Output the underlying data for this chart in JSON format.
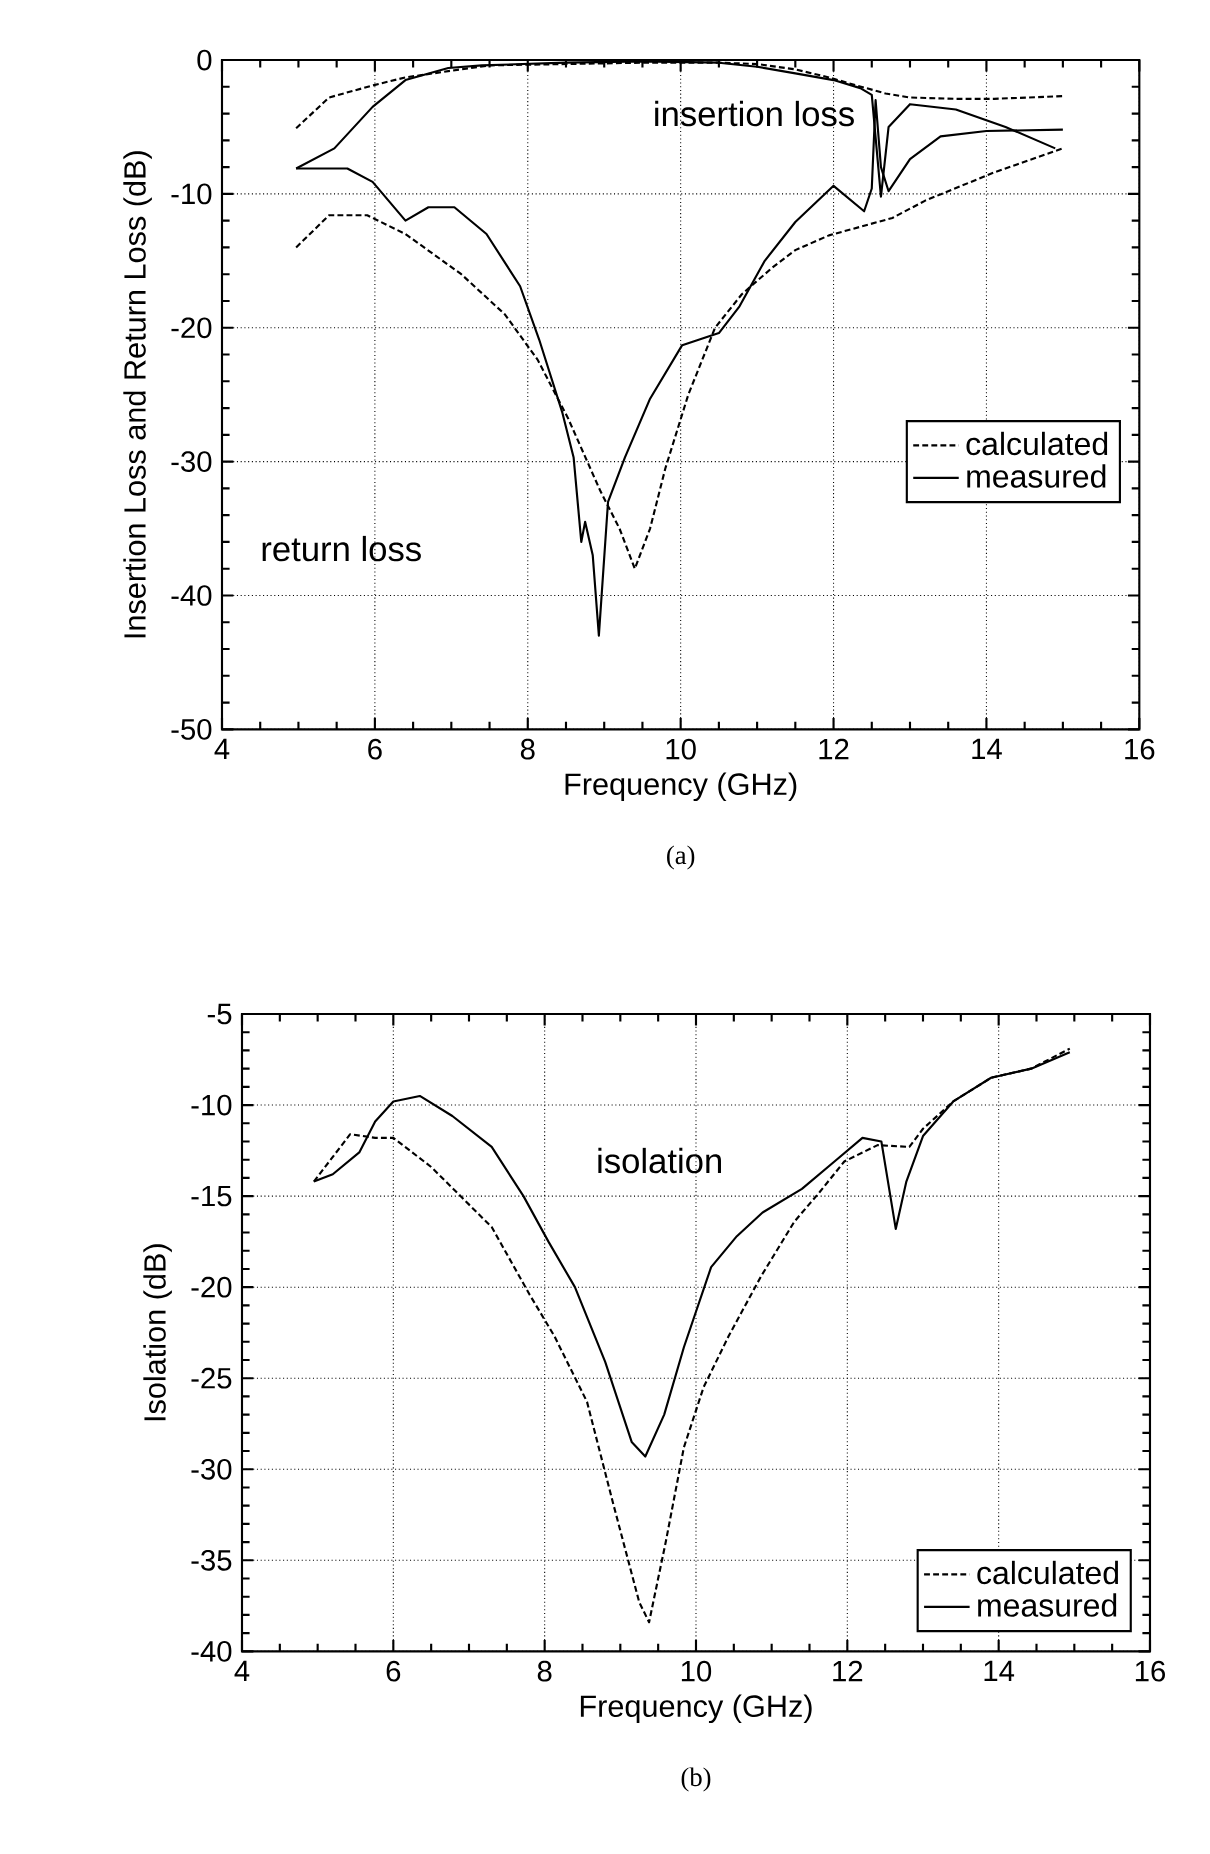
{
  "chart_data": [
    {
      "type": "line",
      "xlabel": "Frequency (GHz)",
      "ylabel": "Insertion Loss and Return Loss (dB)",
      "xlim": [
        4,
        16
      ],
      "xticks": [
        4,
        6,
        8,
        10,
        12,
        14,
        16
      ],
      "ylim": [
        -50,
        0
      ],
      "yticks": [
        -50,
        -40,
        -30,
        -20,
        -10,
        0
      ],
      "grid": true,
      "legend": "right",
      "series": [
        {
          "name": "calculated",
          "color": "#000000",
          "line_style": "dashed",
          "x": [
            4.97,
            5.4,
            5.97,
            6.4,
            7.0,
            7.5,
            8.5,
            9.5,
            10.5,
            11.0,
            11.5,
            11.94,
            12.3,
            12.68,
            13.0,
            13.6,
            14.1,
            15.0
          ],
          "values": [
            -5.1,
            -2.8,
            -1.9,
            -1.3,
            -0.8,
            -0.4,
            -0.3,
            -0.2,
            -0.2,
            -0.3,
            -0.7,
            -1.3,
            -1.9,
            -2.5,
            -2.8,
            -2.9,
            -2.9,
            -2.7
          ]
        },
        {
          "name": "measured",
          "color": "#000000",
          "line_style": "solid",
          "x": [
            4.97,
            5.47,
            5.97,
            6.4,
            6.96,
            7.4,
            8.5,
            9.5,
            10.5,
            11.0,
            11.5,
            12.0,
            12.35,
            12.5,
            12.62,
            12.72,
            13.0,
            13.6,
            14.25,
            14.9
          ],
          "values": [
            -8.1,
            -6.6,
            -3.5,
            -1.5,
            -0.6,
            -0.4,
            -0.2,
            -0.1,
            -0.2,
            -0.5,
            -1.0,
            -1.5,
            -2.1,
            -2.6,
            -10.2,
            -5.0,
            -3.3,
            -3.7,
            -5.0,
            -6.6
          ]
        },
        {
          "color": "#000000",
          "line_style": "dashed",
          "x": [
            4.97,
            5.4,
            5.9,
            6.4,
            7.13,
            7.7,
            8.13,
            8.53,
            8.95,
            9.2,
            9.4,
            9.6,
            9.8,
            10.1,
            10.45,
            10.8,
            11.2,
            11.5,
            11.94,
            12.77,
            13.2,
            14.1,
            15.0
          ],
          "values": [
            -14.0,
            -11.6,
            -11.6,
            -13.0,
            -16.0,
            -19.0,
            -22.4,
            -26.8,
            -32.2,
            -35.0,
            -38.0,
            -35.0,
            -30.5,
            -25.0,
            -20.0,
            -17.5,
            -15.5,
            -14.2,
            -13.1,
            -11.8,
            -10.5,
            -8.4,
            -6.6
          ]
        },
        {
          "color": "#000000",
          "line_style": "solid",
          "x": [
            4.97,
            5.64,
            5.97,
            6.4,
            6.7,
            7.04,
            7.46,
            7.9,
            8.15,
            8.45,
            8.6,
            8.7,
            8.75,
            8.85,
            8.93,
            9.05,
            9.27,
            9.6,
            10.02,
            10.5,
            10.77,
            11.1,
            11.5,
            12.0,
            12.4,
            12.5,
            12.55,
            12.62,
            12.72,
            13.0,
            13.4,
            14.0,
            15.0
          ],
          "values": [
            -8.1,
            -8.1,
            -9.1,
            -12.0,
            -11.0,
            -11.0,
            -13.0,
            -16.9,
            -20.9,
            -26.3,
            -29.7,
            -36.0,
            -34.5,
            -37.0,
            -43.0,
            -33.0,
            -29.7,
            -25.3,
            -21.3,
            -20.4,
            -18.4,
            -15.0,
            -12.1,
            -9.4,
            -11.3,
            -9.6,
            -3.0,
            -8.0,
            -9.8,
            -7.4,
            -5.7,
            -5.3,
            -5.2
          ]
        }
      ],
      "annotations": [
        "insertion loss",
        "return loss",
        "(a)"
      ]
    },
    {
      "type": "line",
      "xlabel": "Frequency (GHz)",
      "ylabel": "Isolation (dB)",
      "xlim": [
        4,
        16
      ],
      "xticks": [
        4,
        6,
        8,
        10,
        12,
        14,
        16
      ],
      "ylim": [
        -40,
        -5
      ],
      "yticks": [
        -40,
        -35,
        -30,
        -25,
        -20,
        -15,
        -10,
        -5
      ],
      "grid": true,
      "legend": "bottom right",
      "series": [
        {
          "name": "calculated",
          "color": "#000000",
          "line_style": "dashed",
          "x": [
            4.95,
            5.43,
            5.76,
            6.0,
            6.5,
            7.3,
            7.8,
            8.13,
            8.56,
            8.9,
            9.25,
            9.38,
            9.6,
            9.84,
            10.1,
            10.43,
            10.86,
            11.3,
            11.63,
            11.96,
            12.4,
            12.82,
            13.0,
            13.4,
            13.9,
            14.43,
            14.94
          ],
          "values": [
            -14.2,
            -11.6,
            -11.8,
            -11.8,
            -13.4,
            -16.7,
            -20.4,
            -22.7,
            -26.3,
            -31.8,
            -37.3,
            -38.4,
            -34.0,
            -28.8,
            -25.5,
            -22.7,
            -19.4,
            -16.4,
            -14.8,
            -13.1,
            -12.2,
            -12.3,
            -11.3,
            -9.8,
            -8.5,
            -8.0,
            -6.9
          ]
        },
        {
          "name": "measured",
          "color": "#000000",
          "line_style": "solid",
          "x": [
            4.95,
            5.2,
            5.55,
            5.76,
            6.0,
            6.35,
            6.78,
            7.3,
            7.72,
            8.05,
            8.4,
            8.8,
            9.15,
            9.33,
            9.58,
            9.84,
            10.2,
            10.54,
            10.88,
            11.4,
            11.83,
            12.2,
            12.45,
            12.64,
            12.78,
            13.0,
            13.4,
            13.9,
            14.43,
            14.94
          ],
          "values": [
            -14.2,
            -13.8,
            -12.6,
            -10.9,
            -9.8,
            -9.5,
            -10.6,
            -12.3,
            -15.0,
            -17.5,
            -20.0,
            -24.1,
            -28.5,
            -29.3,
            -27.0,
            -23.3,
            -18.9,
            -17.2,
            -15.9,
            -14.6,
            -13.1,
            -11.8,
            -12.0,
            -16.8,
            -14.2,
            -11.7,
            -9.8,
            -8.5,
            -8.0,
            -7.1
          ]
        }
      ],
      "annotations": [
        "isolation",
        "(b)"
      ]
    }
  ]
}
